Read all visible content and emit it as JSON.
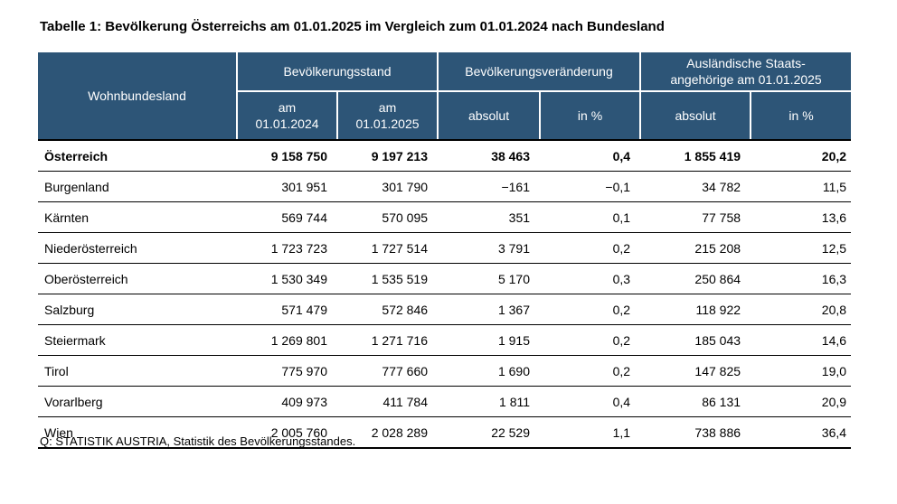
{
  "page": {
    "title": "Tabelle 1: Bevölkerung Österreichs am 01.01.2025 im Vergleich zum 01.01.2024 nach Bundesland",
    "source_note": "Q: STATISTIK AUSTRIA, Statistik des Bevölkerungsstandes."
  },
  "colors": {
    "header_bg": "#2D5577",
    "header_text": "#FFFFFF",
    "rule_color": "#000000",
    "text_color": "#000000",
    "page_bg": "#FFFFFF"
  },
  "table": {
    "header": {
      "row_label": "Wohnbundesland",
      "groups": [
        {
          "label": "Bevölkerungsstand",
          "subcolumns": [
            "am\n01.01.2024",
            "am\n01.01.2025"
          ]
        },
        {
          "label": "Bevölkerungsveränderung",
          "subcolumns": [
            "absolut",
            "in %"
          ]
        },
        {
          "label": "Ausländische Staats-\nangehörige am 01.01.2025",
          "subcolumns": [
            "absolut",
            "in %"
          ]
        }
      ]
    },
    "rows": [
      {
        "name": "Österreich",
        "bold": true,
        "values": [
          "9 158 750",
          "9 197 213",
          "38 463",
          "0,4",
          "1 855 419",
          "20,2"
        ]
      },
      {
        "name": "Burgenland",
        "bold": false,
        "values": [
          "301 951",
          "301 790",
          "−161",
          "−0,1",
          "34 782",
          "11,5"
        ]
      },
      {
        "name": "Kärnten",
        "bold": false,
        "values": [
          "569 744",
          "570 095",
          "351",
          "0,1",
          "77 758",
          "13,6"
        ]
      },
      {
        "name": "Niederösterreich",
        "bold": false,
        "values": [
          "1 723 723",
          "1 727 514",
          "3 791",
          "0,2",
          "215 208",
          "12,5"
        ]
      },
      {
        "name": "Oberösterreich",
        "bold": false,
        "values": [
          "1 530 349",
          "1 535 519",
          "5 170",
          "0,3",
          "250 864",
          "16,3"
        ]
      },
      {
        "name": "Salzburg",
        "bold": false,
        "values": [
          "571 479",
          "572 846",
          "1 367",
          "0,2",
          "118 922",
          "20,8"
        ]
      },
      {
        "name": "Steiermark",
        "bold": false,
        "values": [
          "1 269 801",
          "1 271 716",
          "1 915",
          "0,2",
          "185 043",
          "14,6"
        ]
      },
      {
        "name": "Tirol",
        "bold": false,
        "values": [
          "775 970",
          "777 660",
          "1 690",
          "0,2",
          "147 825",
          "19,0"
        ]
      },
      {
        "name": "Vorarlberg",
        "bold": false,
        "values": [
          "409 973",
          "411 784",
          "1 811",
          "0,4",
          "86 131",
          "20,9"
        ]
      },
      {
        "name": "Wien",
        "bold": false,
        "values": [
          "2 005 760",
          "2 028 289",
          "22 529",
          "1,1",
          "738 886",
          "36,4"
        ]
      }
    ]
  }
}
